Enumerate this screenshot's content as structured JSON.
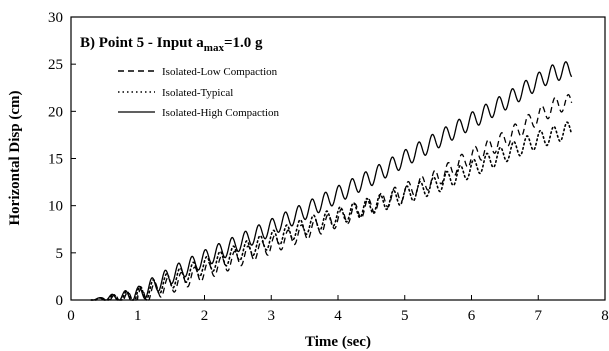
{
  "chart_data": {
    "type": "line",
    "title": "B)   Point 5 - Input a",
    "title_sub": "max",
    "title_tail": "=1.0 g",
    "xlabel": "Time (sec)",
    "ylabel": "Horizontal Disp (cm)",
    "xlim": [
      0,
      8
    ],
    "ylim": [
      0,
      30
    ],
    "xticks": [
      0,
      1,
      2,
      3,
      4,
      5,
      6,
      7,
      8
    ],
    "yticks": [
      0,
      5,
      10,
      15,
      20,
      25,
      30
    ],
    "grid": false,
    "legend_position": "top-left",
    "series": [
      {
        "name": "Isolated-Low Compaction",
        "dash": "dashed",
        "color": "#000000",
        "x": [
          0.3,
          0.8,
          1.0,
          1.5,
          2.0,
          2.5,
          3.0,
          3.5,
          4.0,
          4.5,
          5.0,
          5.5,
          6.0,
          6.5,
          6.9,
          7.3,
          7.5
        ],
        "y": [
          0,
          0.2,
          0.3,
          1.6,
          3.0,
          4.4,
          5.8,
          7.2,
          8.6,
          10.0,
          11.5,
          13.0,
          15.2,
          17.0,
          19.0,
          20.8,
          20.9
        ]
      },
      {
        "name": "Isolated-Typical",
        "dash": "dotted",
        "color": "#000000",
        "x": [
          0.3,
          0.8,
          1.0,
          1.5,
          2.0,
          2.5,
          3.0,
          3.5,
          4.0,
          4.5,
          5.0,
          5.5,
          6.0,
          6.5,
          7.0,
          7.5
        ],
        "y": [
          0,
          0.3,
          0.5,
          2.1,
          3.6,
          5.0,
          6.4,
          7.8,
          8.9,
          10.0,
          11.1,
          12.3,
          13.9,
          15.5,
          17.0,
          18.1
        ]
      },
      {
        "name": "Isolated-High Compaction",
        "dash": "solid",
        "color": "#000000",
        "x": [
          0.3,
          0.8,
          1.0,
          1.5,
          2.0,
          2.5,
          3.0,
          3.5,
          4.0,
          4.5,
          5.0,
          5.5,
          6.0,
          6.5,
          7.0,
          7.2,
          7.5
        ],
        "y": [
          0,
          0.4,
          0.6,
          2.6,
          4.4,
          6.0,
          7.7,
          9.4,
          11.2,
          13.0,
          15.0,
          17.0,
          19.0,
          21.0,
          23.2,
          24.0,
          24.5
        ]
      }
    ]
  }
}
